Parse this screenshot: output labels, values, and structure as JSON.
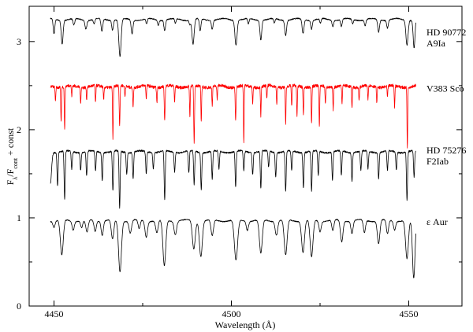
{
  "chart_data": {
    "type": "line",
    "xlabel": "Wavelength (Å)",
    "ylabel_parts": {
      "main": "F",
      "sub1": "λ",
      "slash": "/F",
      "sub2": "cont",
      "rest": " + const"
    },
    "xlim": [
      4443,
      4565
    ],
    "ylim": [
      0,
      3.4
    ],
    "xticks": [
      {
        "value": 4450,
        "label": "4450"
      },
      {
        "value": 4500,
        "label": "4500"
      },
      {
        "value": 4550,
        "label": "4550"
      }
    ],
    "xminor": [
      4475,
      4525
    ],
    "yticks": [
      {
        "value": 0,
        "label": "0"
      },
      {
        "value": 1,
        "label": "1"
      },
      {
        "value": 2,
        "label": "2"
      },
      {
        "value": 3,
        "label": "3"
      }
    ],
    "yminor": [
      0.5,
      1.5,
      2.5
    ],
    "grid": false,
    "series": [
      {
        "name": "HD 90772",
        "label_lines": [
          "HD 90772",
          "A9Ia"
        ],
        "label_y": 3.07,
        "color": "#000000",
        "x_range": [
          4449,
          4552
        ],
        "continuum": 3.25,
        "noise": 0.012,
        "lines": [
          [
            4450.0,
            0.17,
            0.22
          ],
          [
            4452.3,
            0.27,
            0.26
          ],
          [
            4455.6,
            0.07,
            0.25
          ],
          [
            4459.0,
            0.1,
            0.25
          ],
          [
            4461.3,
            0.05,
            0.2
          ],
          [
            4463.5,
            0.14,
            0.25
          ],
          [
            4466.5,
            0.11,
            0.22
          ],
          [
            4468.6,
            0.42,
            0.32
          ],
          [
            4472.0,
            0.16,
            0.25
          ],
          [
            4476.1,
            0.06,
            0.2
          ],
          [
            4479.4,
            0.06,
            0.2
          ],
          [
            4481.2,
            0.12,
            0.22
          ],
          [
            4484.2,
            0.05,
            0.2
          ],
          [
            4488.3,
            0.05,
            0.2
          ],
          [
            4489.2,
            0.28,
            0.3
          ],
          [
            4491.2,
            0.14,
            0.22
          ],
          [
            4494.6,
            0.1,
            0.22
          ],
          [
            4501.3,
            0.28,
            0.3
          ],
          [
            4504.8,
            0.06,
            0.2
          ],
          [
            4508.3,
            0.22,
            0.25
          ],
          [
            4512.1,
            0.05,
            0.2
          ],
          [
            4515.3,
            0.17,
            0.25
          ],
          [
            4520.2,
            0.16,
            0.25
          ],
          [
            4522.6,
            0.1,
            0.22
          ],
          [
            4525.1,
            0.05,
            0.2
          ],
          [
            4528.6,
            0.07,
            0.22
          ],
          [
            4531.0,
            0.08,
            0.22
          ],
          [
            4534.2,
            0.05,
            0.2
          ],
          [
            4537.7,
            0.07,
            0.22
          ],
          [
            4541.5,
            0.14,
            0.25
          ],
          [
            4544.0,
            0.09,
            0.22
          ],
          [
            4549.5,
            0.28,
            0.3
          ],
          [
            4551.5,
            0.32,
            0.25
          ]
        ]
      },
      {
        "name": "V383 Sco",
        "label_lines": [
          "V383 Sco"
        ],
        "label_y": 2.43,
        "color": "#ff0000",
        "x_range": [
          4449,
          4552
        ],
        "continuum": 2.49,
        "noise": 0.035,
        "lines": [
          [
            4450.4,
            0.16,
            0.1
          ],
          [
            4452.0,
            0.4,
            0.1
          ],
          [
            4453.0,
            0.5,
            0.1
          ],
          [
            4455.0,
            0.12,
            0.1
          ],
          [
            4457.5,
            0.18,
            0.1
          ],
          [
            4459.2,
            0.14,
            0.1
          ],
          [
            4461.7,
            0.2,
            0.1
          ],
          [
            4464.0,
            0.15,
            0.1
          ],
          [
            4466.6,
            0.6,
            0.1
          ],
          [
            4468.5,
            0.45,
            0.12
          ],
          [
            4470.0,
            0.12,
            0.1
          ],
          [
            4472.3,
            0.22,
            0.1
          ],
          [
            4476.0,
            0.15,
            0.1
          ],
          [
            4479.0,
            0.18,
            0.1
          ],
          [
            4481.2,
            0.4,
            0.12
          ],
          [
            4484.0,
            0.18,
            0.1
          ],
          [
            4488.3,
            0.35,
            0.1
          ],
          [
            4489.5,
            0.65,
            0.12
          ],
          [
            4491.5,
            0.4,
            0.1
          ],
          [
            4494.6,
            0.22,
            0.1
          ],
          [
            4496.0,
            0.15,
            0.1
          ],
          [
            4501.2,
            0.38,
            0.12
          ],
          [
            4503.5,
            0.65,
            0.1
          ],
          [
            4506.0,
            0.18,
            0.1
          ],
          [
            4508.3,
            0.33,
            0.1
          ],
          [
            4510.0,
            0.15,
            0.1
          ],
          [
            4512.8,
            0.2,
            0.1
          ],
          [
            4515.3,
            0.42,
            0.1
          ],
          [
            4517.0,
            0.24,
            0.1
          ],
          [
            4518.5,
            0.35,
            0.1
          ],
          [
            4520.3,
            0.32,
            0.1
          ],
          [
            4522.6,
            0.42,
            0.1
          ],
          [
            4524.8,
            0.48,
            0.1
          ],
          [
            4526.5,
            0.2,
            0.1
          ],
          [
            4528.7,
            0.26,
            0.1
          ],
          [
            4531.2,
            0.2,
            0.1
          ],
          [
            4534.0,
            0.24,
            0.1
          ],
          [
            4536.0,
            0.16,
            0.1
          ],
          [
            4538.5,
            0.15,
            0.1
          ],
          [
            4541.0,
            0.18,
            0.1
          ],
          [
            4544.0,
            0.13,
            0.1
          ],
          [
            4546.0,
            0.24,
            0.1
          ],
          [
            4549.6,
            0.7,
            0.1
          ]
        ]
      },
      {
        "name": "HD 75276",
        "label_lines": [
          "HD 75276",
          "F2Iab"
        ],
        "label_y": 1.73,
        "color": "#000000",
        "x_range": [
          4449,
          4552
        ],
        "continuum": 1.75,
        "noise": 0.018,
        "lines": [
          [
            4449.0,
            0.35,
            0.3
          ],
          [
            4451.0,
            0.38,
            0.15
          ],
          [
            4453.0,
            0.55,
            0.15
          ],
          [
            4455.0,
            0.2,
            0.15
          ],
          [
            4457.5,
            0.2,
            0.15
          ],
          [
            4459.2,
            0.28,
            0.15
          ],
          [
            4461.7,
            0.22,
            0.15
          ],
          [
            4463.6,
            0.32,
            0.15
          ],
          [
            4466.6,
            0.45,
            0.15
          ],
          [
            4468.5,
            0.65,
            0.15
          ],
          [
            4470.5,
            0.25,
            0.15
          ],
          [
            4472.3,
            0.3,
            0.15
          ],
          [
            4476.0,
            0.25,
            0.15
          ],
          [
            4478.0,
            0.18,
            0.15
          ],
          [
            4481.2,
            0.55,
            0.15
          ],
          [
            4484.0,
            0.22,
            0.15
          ],
          [
            4488.0,
            0.25,
            0.15
          ],
          [
            4489.5,
            0.38,
            0.15
          ],
          [
            4491.5,
            0.42,
            0.15
          ],
          [
            4494.6,
            0.32,
            0.15
          ],
          [
            4496.5,
            0.2,
            0.15
          ],
          [
            4501.2,
            0.4,
            0.15
          ],
          [
            4503.5,
            0.22,
            0.15
          ],
          [
            4506.0,
            0.25,
            0.15
          ],
          [
            4508.3,
            0.42,
            0.15
          ],
          [
            4510.5,
            0.18,
            0.15
          ],
          [
            4512.5,
            0.28,
            0.15
          ],
          [
            4515.3,
            0.45,
            0.15
          ],
          [
            4517.0,
            0.22,
            0.15
          ],
          [
            4520.3,
            0.4,
            0.15
          ],
          [
            4522.6,
            0.45,
            0.15
          ],
          [
            4524.5,
            0.28,
            0.15
          ],
          [
            4528.5,
            0.32,
            0.15
          ],
          [
            4531.0,
            0.28,
            0.15
          ],
          [
            4534.0,
            0.32,
            0.15
          ],
          [
            4536.5,
            0.22,
            0.15
          ],
          [
            4538.5,
            0.2,
            0.15
          ],
          [
            4541.5,
            0.3,
            0.15
          ],
          [
            4544.0,
            0.22,
            0.15
          ],
          [
            4546.5,
            0.2,
            0.15
          ],
          [
            4549.5,
            0.55,
            0.15
          ],
          [
            4551.5,
            0.3,
            0.15
          ]
        ]
      },
      {
        "name": "ε Aur",
        "label_lines": [
          "ε Aur"
        ],
        "label_y": 0.92,
        "color": "#000000",
        "x_range": [
          4449,
          4552
        ],
        "continuum": 0.97,
        "noise": 0.01,
        "lines": [
          [
            4450.0,
            0.07,
            0.3
          ],
          [
            4452.2,
            0.4,
            0.4
          ],
          [
            4455.4,
            0.1,
            0.3
          ],
          [
            4457.8,
            0.08,
            0.3
          ],
          [
            4459.3,
            0.14,
            0.35
          ],
          [
            4461.6,
            0.12,
            0.3
          ],
          [
            4463.6,
            0.16,
            0.3
          ],
          [
            4466.5,
            0.22,
            0.35
          ],
          [
            4468.6,
            0.58,
            0.4
          ],
          [
            4471.5,
            0.14,
            0.35
          ],
          [
            4474.0,
            0.1,
            0.3
          ],
          [
            4476.0,
            0.18,
            0.35
          ],
          [
            4479.0,
            0.14,
            0.35
          ],
          [
            4481.1,
            0.52,
            0.4
          ],
          [
            4484.2,
            0.15,
            0.35
          ],
          [
            4489.4,
            0.32,
            0.4
          ],
          [
            4491.4,
            0.4,
            0.4
          ],
          [
            4494.6,
            0.18,
            0.35
          ],
          [
            4501.3,
            0.46,
            0.45
          ],
          [
            4504.5,
            0.1,
            0.3
          ],
          [
            4508.3,
            0.38,
            0.4
          ],
          [
            4512.7,
            0.16,
            0.35
          ],
          [
            4515.3,
            0.4,
            0.4
          ],
          [
            4520.2,
            0.36,
            0.4
          ],
          [
            4522.6,
            0.42,
            0.4
          ],
          [
            4525.0,
            0.12,
            0.3
          ],
          [
            4528.6,
            0.12,
            0.3
          ],
          [
            4531.1,
            0.24,
            0.35
          ],
          [
            4534.0,
            0.14,
            0.3
          ],
          [
            4537.5,
            0.14,
            0.3
          ],
          [
            4541.5,
            0.26,
            0.35
          ],
          [
            4544.0,
            0.16,
            0.3
          ],
          [
            4546.0,
            0.1,
            0.3
          ],
          [
            4549.5,
            0.44,
            0.4
          ],
          [
            4551.4,
            0.66,
            0.35
          ]
        ]
      }
    ]
  }
}
